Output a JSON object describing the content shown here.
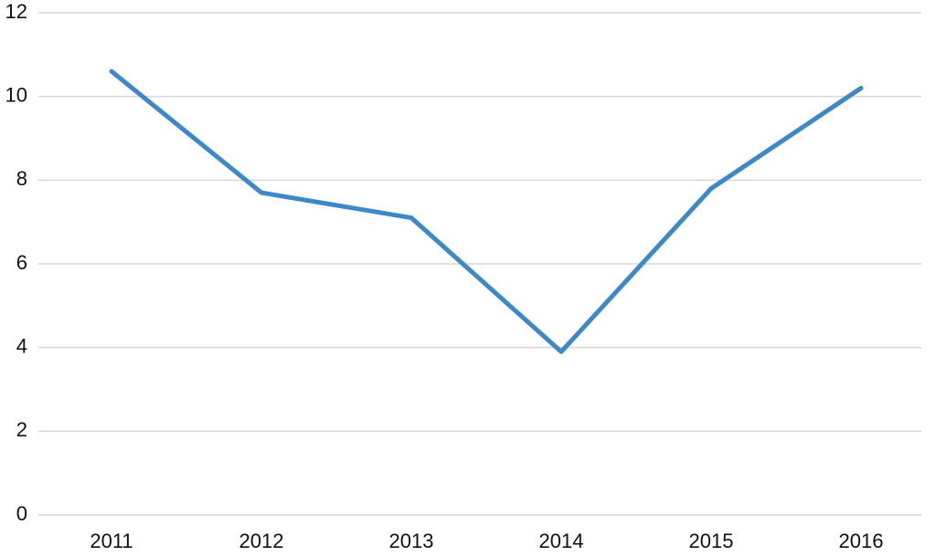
{
  "chart_data": {
    "type": "line",
    "categories": [
      "2011",
      "2012",
      "2013",
      "2014",
      "2015",
      "2016"
    ],
    "values": [
      10.6,
      7.7,
      7.1,
      3.9,
      7.8,
      10.2
    ],
    "color": "#3d88c8",
    "ylim": [
      0,
      12
    ],
    "yticks": [
      0,
      2,
      4,
      6,
      8,
      10,
      12
    ],
    "grid": true
  }
}
